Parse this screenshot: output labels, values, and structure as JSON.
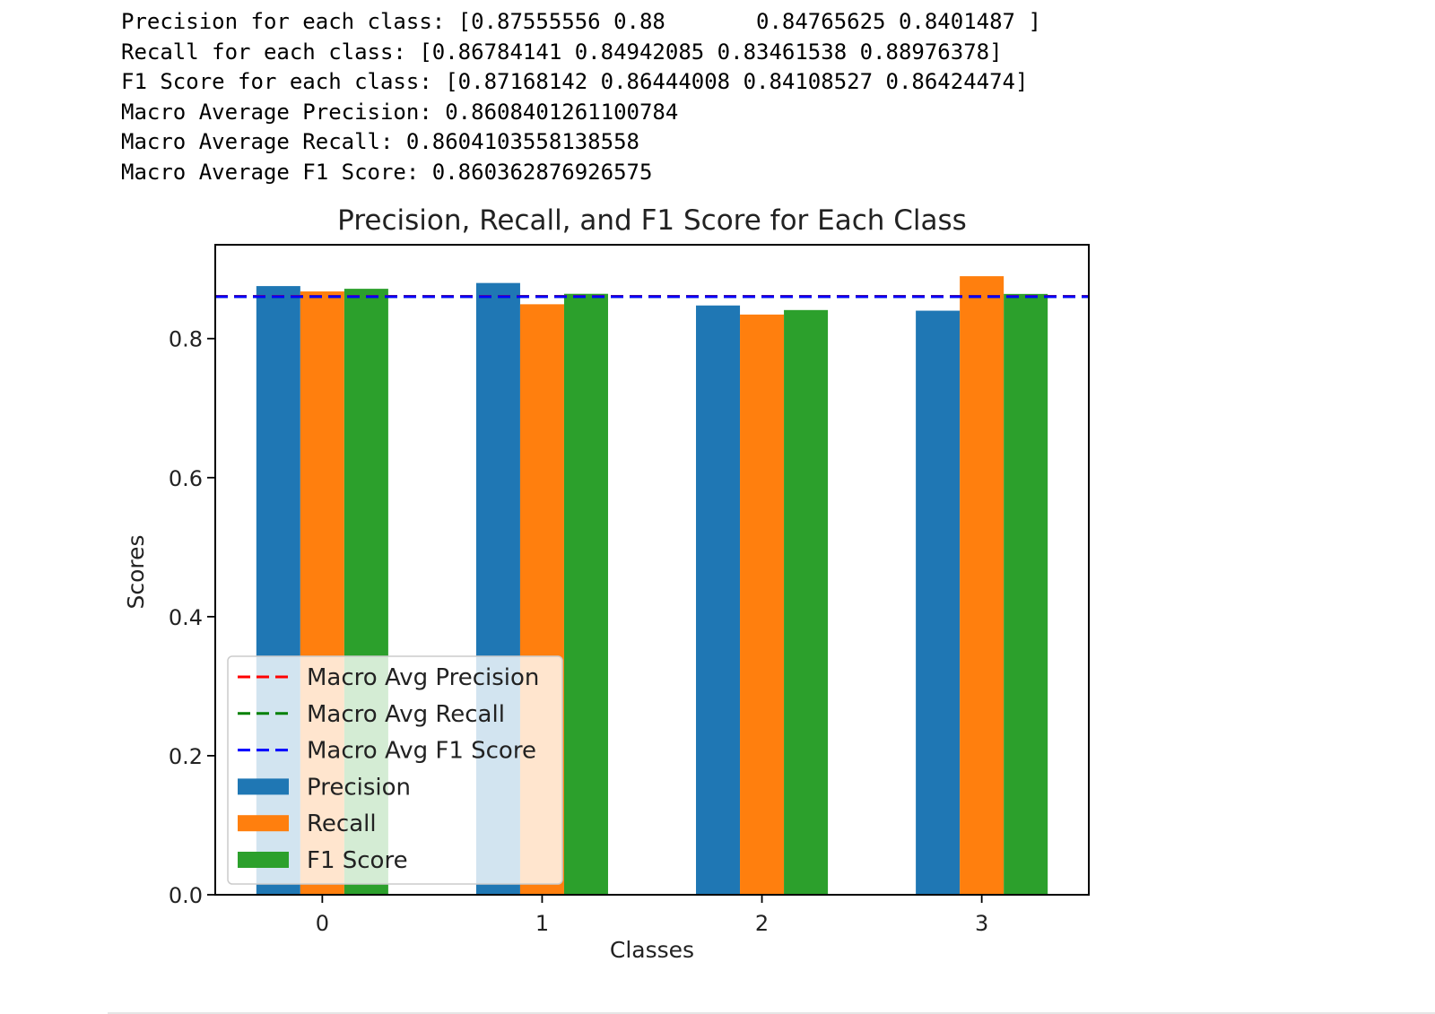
{
  "output": {
    "lines": [
      "Precision for each class: [0.87555556 0.88       0.84765625 0.8401487 ]",
      "Recall for each class: [0.86784141 0.84942085 0.83461538 0.88976378]",
      "F1 Score for each class: [0.87168142 0.86444008 0.84108527 0.86424474]",
      "Macro Average Precision: 0.8608401261100784",
      "Macro Average Recall: 0.8604103558138558",
      "Macro Average F1 Score: 0.860362876926575"
    ]
  },
  "chart_data": {
    "type": "bar",
    "title": "Precision, Recall, and F1 Score for Each Class",
    "xlabel": "Classes",
    "ylabel": "Scores",
    "categories": [
      "0",
      "1",
      "2",
      "3"
    ],
    "ylim": [
      0,
      0.935
    ],
    "yticks": [
      "0.0",
      "0.2",
      "0.4",
      "0.6",
      "0.8"
    ],
    "grid": false,
    "legend_position": "lower-left",
    "series": [
      {
        "name": "Precision",
        "color": "#1f77b4",
        "values": [
          0.87555556,
          0.88,
          0.84765625,
          0.8401487
        ]
      },
      {
        "name": "Recall",
        "color": "#ff7f0e",
        "values": [
          0.86784141,
          0.84942085,
          0.83461538,
          0.88976378
        ]
      },
      {
        "name": "F1 Score",
        "color": "#2ca02c",
        "values": [
          0.87168142,
          0.86444008,
          0.84108527,
          0.86424474
        ]
      }
    ],
    "reference_lines": [
      {
        "name": "Macro Avg Precision",
        "color": "#ff0000",
        "value": 0.8608401261100784
      },
      {
        "name": "Macro Avg Recall",
        "color": "#008000",
        "value": 0.8604103558138558
      },
      {
        "name": "Macro Avg F1 Score",
        "color": "#0000ff",
        "value": 0.860362876926575
      }
    ]
  }
}
